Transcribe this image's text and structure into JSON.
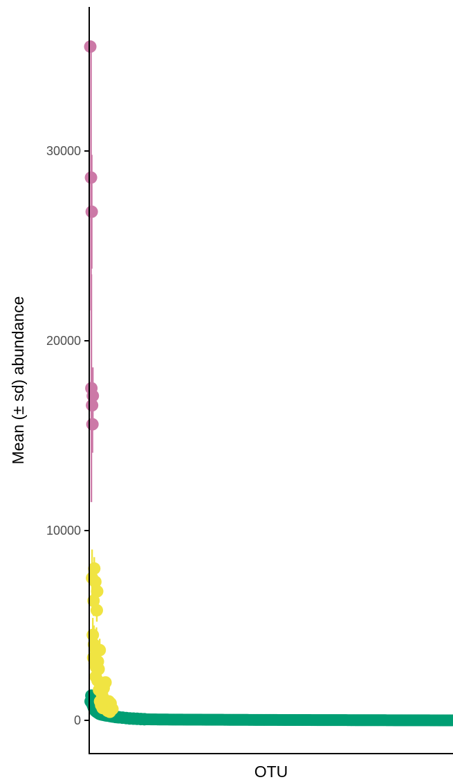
{
  "chart_data": {
    "type": "scatter",
    "title": "",
    "xlabel": "OTU",
    "ylabel": "Mean (± sd) abundance",
    "ylim": [
      -1800,
      37400
    ],
    "yticks": [
      0,
      10000,
      20000,
      30000
    ],
    "ytick_labels": [
      "0",
      "10000",
      "20000",
      "30000"
    ],
    "x_ticks_shown": false,
    "xlim": [
      0,
      1000
    ],
    "grid": false,
    "legend": "none",
    "colors": {
      "high": "#CC79A7",
      "mid": "#F0E442",
      "low": "#009E73",
      "axis": "#000000"
    },
    "series": [
      {
        "color_key": "high",
        "points": [
          {
            "x": 1,
            "y": 35500,
            "sd": 0
          },
          {
            "x": 3,
            "y": 28600,
            "sd": 7000
          },
          {
            "x": 5,
            "y": 26800,
            "sd": 3000
          },
          {
            "x": 4,
            "y": 17500,
            "sd": 6000
          },
          {
            "x": 8,
            "y": 17100,
            "sd": 1500
          },
          {
            "x": 6,
            "y": 16600,
            "sd": 1000
          },
          {
            "x": 7,
            "y": 15600,
            "sd": 1500
          }
        ]
      },
      {
        "color_key": "mid",
        "points": [
          {
            "x": 6,
            "y": 7500,
            "sd": 1500
          },
          {
            "x": 12,
            "y": 8000,
            "sd": 600
          },
          {
            "x": 15,
            "y": 7300,
            "sd": 600
          },
          {
            "x": 20,
            "y": 6800,
            "sd": 600
          },
          {
            "x": 10,
            "y": 6300,
            "sd": 800
          },
          {
            "x": 19,
            "y": 5800,
            "sd": 600
          },
          {
            "x": 8,
            "y": 4500,
            "sd": 900
          },
          {
            "x": 11,
            "y": 4000,
            "sd": 1000
          },
          {
            "x": 14,
            "y": 3800,
            "sd": 1000
          },
          {
            "x": 18,
            "y": 3600,
            "sd": 1300
          },
          {
            "x": 27,
            "y": 3700,
            "sd": 600
          },
          {
            "x": 9,
            "y": 3300,
            "sd": 800
          },
          {
            "x": 13,
            "y": 3000,
            "sd": 1000
          },
          {
            "x": 22,
            "y": 3100,
            "sd": 700
          },
          {
            "x": 17,
            "y": 2800,
            "sd": 900
          },
          {
            "x": 24,
            "y": 2700,
            "sd": 600
          },
          {
            "x": 16,
            "y": 2300,
            "sd": 700
          },
          {
            "x": 21,
            "y": 2100,
            "sd": 500
          },
          {
            "x": 29,
            "y": 1900,
            "sd": 400
          },
          {
            "x": 43,
            "y": 2000,
            "sd": 300
          },
          {
            "x": 38,
            "y": 1700,
            "sd": 400
          },
          {
            "x": 25,
            "y": 1600,
            "sd": 500
          },
          {
            "x": 33,
            "y": 1400,
            "sd": 500
          },
          {
            "x": 36,
            "y": 1200,
            "sd": 400
          },
          {
            "x": 28,
            "y": 1000,
            "sd": 400
          },
          {
            "x": 41,
            "y": 900,
            "sd": 300
          },
          {
            "x": 31,
            "y": 800,
            "sd": 300
          },
          {
            "x": 47,
            "y": 800,
            "sd": 300
          },
          {
            "x": 52,
            "y": 1000,
            "sd": 250
          },
          {
            "x": 57,
            "y": 900,
            "sd": 250
          },
          {
            "x": 35,
            "y": 650,
            "sd": 250
          },
          {
            "x": 45,
            "y": 600,
            "sd": 250
          },
          {
            "x": 49,
            "y": 500,
            "sd": 200
          },
          {
            "x": 62,
            "y": 600,
            "sd": 200
          },
          {
            "x": 55,
            "y": 450,
            "sd": 200
          }
        ]
      },
      {
        "color_key": "low",
        "lead": [
          {
            "x": 4,
            "y": 1300
          },
          {
            "x": 2,
            "y": 1000
          },
          {
            "x": 6,
            "y": 900
          },
          {
            "x": 8,
            "y": 800
          },
          {
            "x": 10,
            "y": 700
          },
          {
            "x": 12,
            "y": 600
          },
          {
            "x": 15,
            "y": 500
          },
          {
            "x": 18,
            "y": 450
          },
          {
            "x": 22,
            "y": 400
          },
          {
            "x": 26,
            "y": 350
          },
          {
            "x": 30,
            "y": 320
          },
          {
            "x": 35,
            "y": 300
          },
          {
            "x": 40,
            "y": 280
          },
          {
            "x": 45,
            "y": 260
          },
          {
            "x": 50,
            "y": 250
          },
          {
            "x": 55,
            "y": 230
          },
          {
            "x": 60,
            "y": 210
          },
          {
            "x": 65,
            "y": 200
          },
          {
            "x": 70,
            "y": 180
          },
          {
            "x": 75,
            "y": 170
          },
          {
            "x": 80,
            "y": 160
          },
          {
            "x": 90,
            "y": 140
          },
          {
            "x": 100,
            "y": 120
          },
          {
            "x": 110,
            "y": 100
          },
          {
            "x": 120,
            "y": 90
          },
          {
            "x": 130,
            "y": 80
          },
          {
            "x": 140,
            "y": 70
          },
          {
            "x": 150,
            "y": 60
          }
        ],
        "tail": {
          "x_start": 150,
          "x_end": 1000,
          "step": 4,
          "y_start": 60,
          "y_end": 0
        }
      }
    ]
  }
}
